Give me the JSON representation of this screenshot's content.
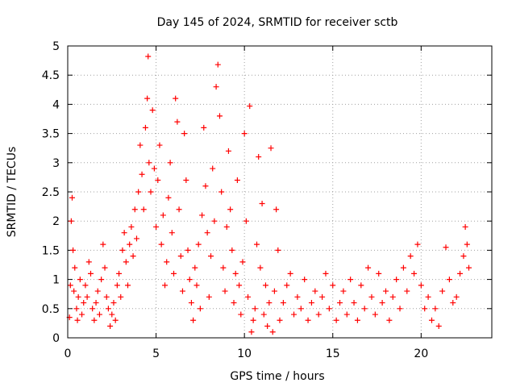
{
  "chart_data": {
    "type": "scatter",
    "title": "Day 145 of 2024, SRMTID for receiver sctb",
    "xlabel": "GPS time / hours",
    "ylabel": "SRMTID / TECUs",
    "xlim": [
      0,
      24
    ],
    "ylim": [
      0,
      5
    ],
    "xticks": [
      0,
      5,
      10,
      15,
      20
    ],
    "xtick_labels": [
      "0",
      "5",
      "10",
      "15",
      "20"
    ],
    "yticks": [
      0,
      0.5,
      1,
      1.5,
      2,
      2.5,
      3,
      3.5,
      4,
      4.5,
      5
    ],
    "ytick_labels": [
      "0",
      "0.5",
      "1",
      "1.5",
      "2",
      "2.5",
      "3",
      "3.5",
      "4",
      "4.5",
      "5"
    ],
    "grid": true,
    "marker": "+",
    "marker_color": "#ff0000",
    "series": [
      {
        "name": "sctb",
        "points": [
          [
            0.1,
            0.35
          ],
          [
            0.15,
            0.9
          ],
          [
            0.2,
            2.0
          ],
          [
            0.25,
            2.4
          ],
          [
            0.3,
            1.5
          ],
          [
            0.35,
            0.8
          ],
          [
            0.4,
            1.2
          ],
          [
            0.5,
            0.5
          ],
          [
            0.55,
            0.3
          ],
          [
            0.6,
            0.7
          ],
          [
            0.7,
            1.0
          ],
          [
            0.8,
            0.4
          ],
          [
            0.9,
            0.6
          ],
          [
            1.0,
            0.9
          ],
          [
            1.1,
            0.7
          ],
          [
            1.2,
            1.3
          ],
          [
            1.3,
            1.1
          ],
          [
            1.4,
            0.5
          ],
          [
            1.5,
            0.3
          ],
          [
            1.6,
            0.6
          ],
          [
            1.7,
            0.8
          ],
          [
            1.8,
            0.4
          ],
          [
            1.9,
            1.0
          ],
          [
            2.0,
            1.6
          ],
          [
            2.1,
            1.2
          ],
          [
            2.2,
            0.7
          ],
          [
            2.3,
            0.5
          ],
          [
            2.4,
            0.2
          ],
          [
            2.5,
            0.4
          ],
          [
            2.6,
            0.6
          ],
          [
            2.7,
            0.3
          ],
          [
            2.8,
            0.9
          ],
          [
            2.9,
            1.1
          ],
          [
            3.0,
            0.7
          ],
          [
            3.1,
            1.5
          ],
          [
            3.2,
            1.8
          ],
          [
            3.3,
            1.3
          ],
          [
            3.4,
            0.9
          ],
          [
            3.5,
            1.6
          ],
          [
            3.6,
            1.9
          ],
          [
            3.7,
            1.4
          ],
          [
            3.8,
            2.2
          ],
          [
            3.9,
            1.7
          ],
          [
            4.0,
            2.5
          ],
          [
            4.1,
            3.3
          ],
          [
            4.2,
            2.8
          ],
          [
            4.3,
            2.2
          ],
          [
            4.4,
            3.6
          ],
          [
            4.5,
            4.1
          ],
          [
            4.55,
            4.82
          ],
          [
            4.6,
            3.0
          ],
          [
            4.7,
            2.5
          ],
          [
            4.8,
            3.9
          ],
          [
            4.9,
            2.9
          ],
          [
            5.0,
            1.9
          ],
          [
            5.1,
            2.7
          ],
          [
            5.2,
            3.3
          ],
          [
            5.3,
            1.6
          ],
          [
            5.4,
            2.1
          ],
          [
            5.5,
            0.9
          ],
          [
            5.6,
            1.3
          ],
          [
            5.7,
            2.4
          ],
          [
            5.8,
            3.0
          ],
          [
            5.9,
            1.8
          ],
          [
            6.0,
            1.1
          ],
          [
            6.1,
            4.1
          ],
          [
            6.2,
            3.7
          ],
          [
            6.3,
            2.2
          ],
          [
            6.4,
            1.4
          ],
          [
            6.5,
            0.8
          ],
          [
            6.6,
            3.5
          ],
          [
            6.7,
            2.7
          ],
          [
            6.8,
            1.5
          ],
          [
            6.9,
            1.0
          ],
          [
            7.0,
            0.6
          ],
          [
            7.1,
            0.3
          ],
          [
            7.2,
            1.2
          ],
          [
            7.3,
            0.9
          ],
          [
            7.4,
            1.6
          ],
          [
            7.5,
            0.5
          ],
          [
            7.6,
            2.1
          ],
          [
            7.7,
            3.6
          ],
          [
            7.8,
            2.6
          ],
          [
            7.9,
            1.8
          ],
          [
            8.0,
            0.7
          ],
          [
            8.1,
            1.4
          ],
          [
            8.2,
            2.9
          ],
          [
            8.3,
            2.0
          ],
          [
            8.4,
            4.3
          ],
          [
            8.5,
            4.68
          ],
          [
            8.6,
            3.8
          ],
          [
            8.7,
            2.5
          ],
          [
            8.8,
            1.2
          ],
          [
            8.9,
            0.8
          ],
          [
            9.0,
            1.9
          ],
          [
            9.1,
            3.2
          ],
          [
            9.2,
            2.2
          ],
          [
            9.3,
            1.5
          ],
          [
            9.4,
            0.6
          ],
          [
            9.5,
            1.1
          ],
          [
            9.6,
            2.7
          ],
          [
            9.7,
            0.9
          ],
          [
            9.8,
            0.4
          ],
          [
            9.9,
            1.3
          ],
          [
            10.0,
            3.5
          ],
          [
            10.1,
            2.0
          ],
          [
            10.2,
            0.7
          ],
          [
            10.3,
            3.97
          ],
          [
            10.4,
            0.1
          ],
          [
            10.5,
            0.3
          ],
          [
            10.6,
            0.5
          ],
          [
            10.7,
            1.6
          ],
          [
            10.8,
            3.1
          ],
          [
            10.9,
            1.2
          ],
          [
            11.0,
            2.3
          ],
          [
            11.1,
            0.4
          ],
          [
            11.2,
            0.9
          ],
          [
            11.3,
            0.2
          ],
          [
            11.4,
            0.6
          ],
          [
            11.5,
            3.25
          ],
          [
            11.6,
            0.1
          ],
          [
            11.7,
            0.8
          ],
          [
            11.8,
            2.2
          ],
          [
            11.9,
            1.5
          ],
          [
            12.0,
            0.3
          ],
          [
            12.2,
            0.6
          ],
          [
            12.4,
            0.9
          ],
          [
            12.6,
            1.1
          ],
          [
            12.8,
            0.4
          ],
          [
            13.0,
            0.7
          ],
          [
            13.2,
            0.5
          ],
          [
            13.4,
            1.0
          ],
          [
            13.6,
            0.3
          ],
          [
            13.8,
            0.6
          ],
          [
            14.0,
            0.8
          ],
          [
            14.2,
            0.4
          ],
          [
            14.4,
            0.7
          ],
          [
            14.6,
            1.1
          ],
          [
            14.8,
            0.5
          ],
          [
            15.0,
            0.9
          ],
          [
            15.2,
            0.3
          ],
          [
            15.4,
            0.6
          ],
          [
            15.6,
            0.8
          ],
          [
            15.8,
            0.4
          ],
          [
            16.0,
            1.0
          ],
          [
            16.2,
            0.6
          ],
          [
            16.4,
            0.3
          ],
          [
            16.6,
            0.9
          ],
          [
            16.8,
            0.5
          ],
          [
            17.0,
            1.2
          ],
          [
            17.2,
            0.7
          ],
          [
            17.4,
            0.4
          ],
          [
            17.6,
            1.1
          ],
          [
            17.8,
            0.6
          ],
          [
            18.0,
            0.8
          ],
          [
            18.2,
            0.3
          ],
          [
            18.4,
            0.7
          ],
          [
            18.6,
            1.0
          ],
          [
            18.8,
            0.5
          ],
          [
            19.0,
            1.2
          ],
          [
            19.2,
            0.8
          ],
          [
            19.4,
            1.4
          ],
          [
            19.6,
            1.1
          ],
          [
            19.8,
            1.6
          ],
          [
            20.0,
            0.9
          ],
          [
            20.2,
            0.5
          ],
          [
            20.4,
            0.7
          ],
          [
            20.6,
            0.3
          ],
          [
            20.8,
            0.5
          ],
          [
            21.0,
            0.2
          ],
          [
            21.2,
            0.8
          ],
          [
            21.4,
            1.55
          ],
          [
            21.6,
            1.0
          ],
          [
            21.8,
            0.6
          ],
          [
            22.0,
            0.7
          ],
          [
            22.2,
            1.1
          ],
          [
            22.4,
            1.4
          ],
          [
            22.5,
            1.9
          ],
          [
            22.6,
            1.6
          ],
          [
            22.7,
            1.2
          ]
        ]
      }
    ]
  }
}
